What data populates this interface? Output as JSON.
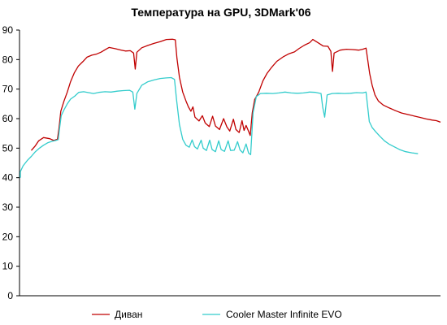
{
  "chart_data": {
    "type": "line",
    "title": "Температура на GPU, 3DMark'06",
    "xlabel": "",
    "ylabel": "",
    "ylim": [
      0,
      90
    ],
    "yticks": [
      "0",
      "10",
      "20",
      "30",
      "40",
      "50",
      "60",
      "70",
      "80",
      "90"
    ],
    "grid": false,
    "legend_position": "bottom",
    "x_domain": [
      0,
      100
    ],
    "series": [
      {
        "name": "Диван",
        "color": "#c00000",
        "points": [
          [
            0.0,
            49.2
          ],
          [
            1.0,
            50.8
          ],
          [
            1.8,
            52.5
          ],
          [
            3.0,
            53.6
          ],
          [
            4.5,
            53.2
          ],
          [
            5.5,
            52.6
          ],
          [
            6.4,
            53.0
          ],
          [
            6.8,
            57.0
          ],
          [
            7.2,
            62.5
          ],
          [
            8.0,
            66.0
          ],
          [
            8.8,
            69.0
          ],
          [
            9.6,
            72.5
          ],
          [
            10.5,
            75.5
          ],
          [
            11.5,
            77.8
          ],
          [
            12.6,
            79.3
          ],
          [
            13.6,
            80.8
          ],
          [
            14.8,
            81.5
          ],
          [
            15.8,
            81.8
          ],
          [
            17.0,
            82.5
          ],
          [
            18.0,
            83.3
          ],
          [
            19.0,
            84.1
          ],
          [
            20.5,
            83.7
          ],
          [
            22.0,
            83.2
          ],
          [
            23.0,
            82.9
          ],
          [
            24.2,
            83.0
          ],
          [
            25.0,
            82.2
          ],
          [
            25.4,
            76.8
          ],
          [
            25.8,
            82.5
          ],
          [
            27.0,
            84.0
          ],
          [
            28.5,
            84.8
          ],
          [
            30.0,
            85.5
          ],
          [
            31.5,
            86.1
          ],
          [
            33.0,
            86.8
          ],
          [
            34.5,
            86.9
          ],
          [
            35.2,
            86.7
          ],
          [
            35.6,
            80.5
          ],
          [
            36.2,
            74.0
          ],
          [
            37.0,
            69.0
          ],
          [
            37.8,
            66.0
          ],
          [
            38.4,
            64.0
          ],
          [
            39.0,
            62.5
          ],
          [
            39.5,
            64.0
          ],
          [
            40.0,
            60.5
          ],
          [
            41.0,
            59.2
          ],
          [
            41.8,
            61.0
          ],
          [
            42.5,
            58.5
          ],
          [
            43.5,
            57.3
          ],
          [
            44.3,
            60.8
          ],
          [
            45.0,
            57.5
          ],
          [
            46.0,
            56.3
          ],
          [
            47.0,
            60.0
          ],
          [
            47.8,
            57.2
          ],
          [
            48.5,
            55.8
          ],
          [
            49.4,
            59.8
          ],
          [
            50.0,
            56.3
          ],
          [
            50.8,
            55.3
          ],
          [
            51.5,
            59.3
          ],
          [
            52.0,
            56.0
          ],
          [
            52.5,
            57.7
          ],
          [
            53.0,
            56.0
          ],
          [
            53.5,
            54.3
          ],
          [
            54.0,
            62.0
          ],
          [
            54.6,
            66.5
          ],
          [
            55.6,
            69.0
          ],
          [
            56.6,
            72.8
          ],
          [
            57.6,
            75.3
          ],
          [
            58.8,
            77.5
          ],
          [
            60.0,
            79.4
          ],
          [
            61.5,
            80.9
          ],
          [
            63.0,
            82.0
          ],
          [
            64.3,
            82.6
          ],
          [
            65.5,
            83.8
          ],
          [
            66.8,
            84.9
          ],
          [
            68.0,
            85.7
          ],
          [
            68.8,
            86.8
          ],
          [
            70.0,
            85.8
          ],
          [
            71.3,
            84.6
          ],
          [
            72.5,
            84.5
          ],
          [
            73.2,
            82.8
          ],
          [
            73.6,
            76.0
          ],
          [
            74.0,
            82.2
          ],
          [
            75.5,
            83.2
          ],
          [
            77.0,
            83.5
          ],
          [
            78.5,
            83.4
          ],
          [
            80.0,
            83.2
          ],
          [
            81.0,
            83.5
          ],
          [
            81.8,
            83.9
          ],
          [
            82.2,
            80.0
          ],
          [
            82.7,
            75.2
          ],
          [
            83.3,
            71.3
          ],
          [
            84.0,
            68.0
          ],
          [
            84.8,
            66.0
          ],
          [
            86.0,
            64.6
          ],
          [
            87.5,
            63.6
          ],
          [
            89.0,
            62.7
          ],
          [
            90.5,
            61.9
          ],
          [
            92.0,
            61.4
          ],
          [
            93.5,
            60.9
          ],
          [
            95.0,
            60.4
          ],
          [
            96.5,
            59.9
          ],
          [
            98.0,
            59.5
          ],
          [
            99.0,
            59.3
          ],
          [
            100.0,
            58.8
          ]
        ]
      },
      {
        "name": "Cooler Master Infinite EVO",
        "color": "#33cccc",
        "points": [
          [
            -3.8,
            40.0
          ],
          [
            -3.0,
            42.0
          ],
          [
            -2.0,
            44.0
          ],
          [
            -1.0,
            45.8
          ],
          [
            0.0,
            47.2
          ],
          [
            1.0,
            48.8
          ],
          [
            2.0,
            50.0
          ],
          [
            3.0,
            51.0
          ],
          [
            4.0,
            51.8
          ],
          [
            5.0,
            52.3
          ],
          [
            6.0,
            52.6
          ],
          [
            6.6,
            52.9
          ],
          [
            6.9,
            56.5
          ],
          [
            7.3,
            61.0
          ],
          [
            8.0,
            63.0
          ],
          [
            8.8,
            65.0
          ],
          [
            9.6,
            66.6
          ],
          [
            10.6,
            67.6
          ],
          [
            11.6,
            68.9
          ],
          [
            12.8,
            69.1
          ],
          [
            14.0,
            68.8
          ],
          [
            15.2,
            68.5
          ],
          [
            16.5,
            68.9
          ],
          [
            18.0,
            69.1
          ],
          [
            19.5,
            69.0
          ],
          [
            21.0,
            69.3
          ],
          [
            22.5,
            69.5
          ],
          [
            24.0,
            69.6
          ],
          [
            24.8,
            69.0
          ],
          [
            25.3,
            63.2
          ],
          [
            25.8,
            68.5
          ],
          [
            27.0,
            71.3
          ],
          [
            28.5,
            72.5
          ],
          [
            30.0,
            73.1
          ],
          [
            31.5,
            73.6
          ],
          [
            33.0,
            73.8
          ],
          [
            34.2,
            73.9
          ],
          [
            35.0,
            73.3
          ],
          [
            35.5,
            66.5
          ],
          [
            36.2,
            58.0
          ],
          [
            37.0,
            53.0
          ],
          [
            37.8,
            51.0
          ],
          [
            38.6,
            50.3
          ],
          [
            39.3,
            52.8
          ],
          [
            39.9,
            50.5
          ],
          [
            40.6,
            49.7
          ],
          [
            41.5,
            52.7
          ],
          [
            42.0,
            50.0
          ],
          [
            42.8,
            49.2
          ],
          [
            43.6,
            52.7
          ],
          [
            44.2,
            49.5
          ],
          [
            45.0,
            48.8
          ],
          [
            45.8,
            52.5
          ],
          [
            46.4,
            49.5
          ],
          [
            47.2,
            48.9
          ],
          [
            48.1,
            52.5
          ],
          [
            48.7,
            49.2
          ],
          [
            49.6,
            49.3
          ],
          [
            50.4,
            52.2
          ],
          [
            51.0,
            49.4
          ],
          [
            51.7,
            48.4
          ],
          [
            52.5,
            51.4
          ],
          [
            53.1,
            48.3
          ],
          [
            53.6,
            47.8
          ],
          [
            54.2,
            62.0
          ],
          [
            55.0,
            67.5
          ],
          [
            56.0,
            68.5
          ],
          [
            57.5,
            68.6
          ],
          [
            59.0,
            68.5
          ],
          [
            60.5,
            68.7
          ],
          [
            62.0,
            69.0
          ],
          [
            63.5,
            68.7
          ],
          [
            65.0,
            68.6
          ],
          [
            66.5,
            68.7
          ],
          [
            68.0,
            69.0
          ],
          [
            69.5,
            68.9
          ],
          [
            70.8,
            68.5
          ],
          [
            71.2,
            64.0
          ],
          [
            71.7,
            60.5
          ],
          [
            72.3,
            68.0
          ],
          [
            73.5,
            68.5
          ],
          [
            75.0,
            68.6
          ],
          [
            76.5,
            68.5
          ],
          [
            78.0,
            68.6
          ],
          [
            79.5,
            68.8
          ],
          [
            81.0,
            68.7
          ],
          [
            81.8,
            69.0
          ],
          [
            82.2,
            64.0
          ],
          [
            82.6,
            59.0
          ],
          [
            83.3,
            57.0
          ],
          [
            84.2,
            55.5
          ],
          [
            85.2,
            54.0
          ],
          [
            86.3,
            52.5
          ],
          [
            87.5,
            51.3
          ],
          [
            88.8,
            50.4
          ],
          [
            90.0,
            49.5
          ],
          [
            91.5,
            48.8
          ],
          [
            93.0,
            48.4
          ],
          [
            94.5,
            48.1
          ]
        ]
      }
    ]
  }
}
